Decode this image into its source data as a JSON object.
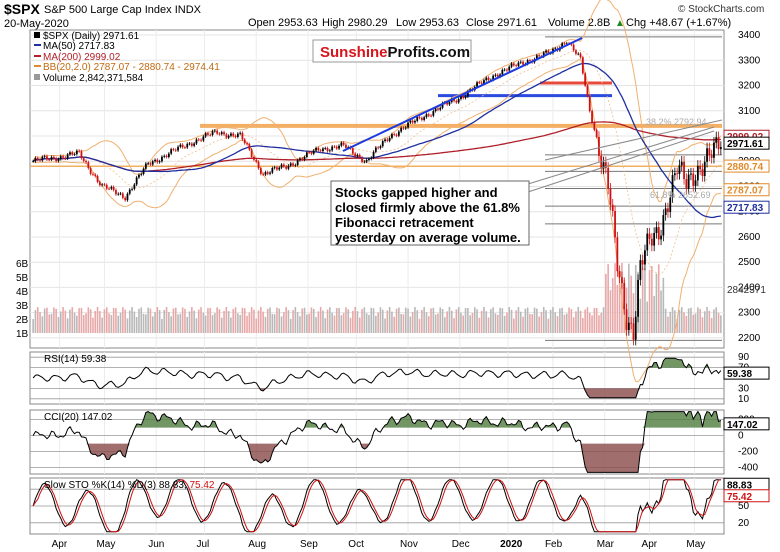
{
  "header": {
    "symbol": "$SPX",
    "name": "S&P 500 Large Cap Index",
    "exchange": "INDX",
    "date": "20-May-2020",
    "ohlc": {
      "open": "Open 2953.63",
      "high": "High 2980.29",
      "low": "Low 2953.63",
      "close": "Close 2971.61"
    },
    "volume": "Volume 2.8B",
    "change": "Chg +48.67 (+1.67%)",
    "change_arrow": "▲",
    "watermark": "© StockCharts.com"
  },
  "logo": {
    "part1": "Sunshine",
    "part2": "Profits.com"
  },
  "legend": [
    {
      "text": "$SPX (Daily) 2971.61",
      "color": "#000000"
    },
    {
      "text": "MA(50) 2717.83",
      "color": "#1f2fa0"
    },
    {
      "text": "MA(200) 2999.02",
      "color": "#b0202a"
    },
    {
      "text": "BB(20,2.0) 2787.07 - 2880.74 - 2974.41",
      "color": "#e08b2a"
    },
    {
      "text": "Volume 2,842,371,584",
      "color": "#555555"
    }
  ],
  "annotation": {
    "lines": [
      "Stocks gapped higher and",
      "closed firmly above the 61.8%",
      "Fibonacci retracement",
      "yesterday on average volume."
    ]
  },
  "fib_labels": [
    "38.2% 2792.94",
    "61.8% 2652.69"
  ],
  "chart_data": [
    {
      "type": "line",
      "panel": "price",
      "y_ticks": [
        2200,
        2300,
        2400,
        2500,
        2600,
        2700,
        2800,
        2900,
        3000,
        3100,
        3200,
        3300,
        3400
      ],
      "ylim": [
        2160,
        3420
      ],
      "volume_ticks": [
        "1B",
        "2B",
        "3B",
        "4B",
        "5B",
        "6B"
      ],
      "price_tags": [
        {
          "value": 2999.02,
          "label": "2999.02",
          "color": "#b0202a"
        },
        {
          "value": 2971.61,
          "label": "2971.61",
          "color": "#000000"
        },
        {
          "value": 2880.74,
          "label": "2880.74",
          "color": "#e08b2a"
        },
        {
          "value": 2787.07,
          "label": "2787.07",
          "color": "#e08b2a"
        },
        {
          "value": 2717.83,
          "label": "2717.83",
          "color": "#1f2fa0"
        }
      ],
      "volume_tag": "2842371",
      "resistance_levels": [
        3040,
        3210,
        3160,
        2880
      ],
      "fib_levels": [
        2925,
        2860,
        2792,
        2722,
        2652,
        2190,
        3393
      ],
      "x_months": [
        "Apr",
        "May",
        "Jun",
        "Jul",
        "Aug",
        "Sep",
        "Oct",
        "Nov",
        "Dec",
        "2020",
        "Feb",
        "Mar",
        "Apr",
        "May"
      ]
    },
    {
      "type": "line",
      "panel": "rsi",
      "title": "RSI(14) 59.38",
      "y_ticks": [
        10,
        30,
        70,
        90
      ],
      "value": 59.38,
      "value_label": "59.38"
    },
    {
      "type": "line",
      "panel": "cci",
      "title": "CCI(20) 147.02",
      "y_ticks": [
        -400,
        -200,
        0,
        200
      ],
      "value": 147.02,
      "value_label": "147.02"
    },
    {
      "type": "line",
      "panel": "sto",
      "title": "Slow STO %K(14) %D(3)",
      "title_k": "88.83",
      "title_d": "75.42",
      "y_ticks": [
        20,
        50,
        80
      ],
      "k_label": "88.83",
      "d_label": "75.42"
    }
  ],
  "x_axis_months": [
    "Apr",
    "May",
    "Jun",
    "Jul",
    "Aug",
    "Sep",
    "Oct",
    "Nov",
    "Dec",
    "2020",
    "Feb",
    "Mar",
    "Apr",
    "May"
  ]
}
